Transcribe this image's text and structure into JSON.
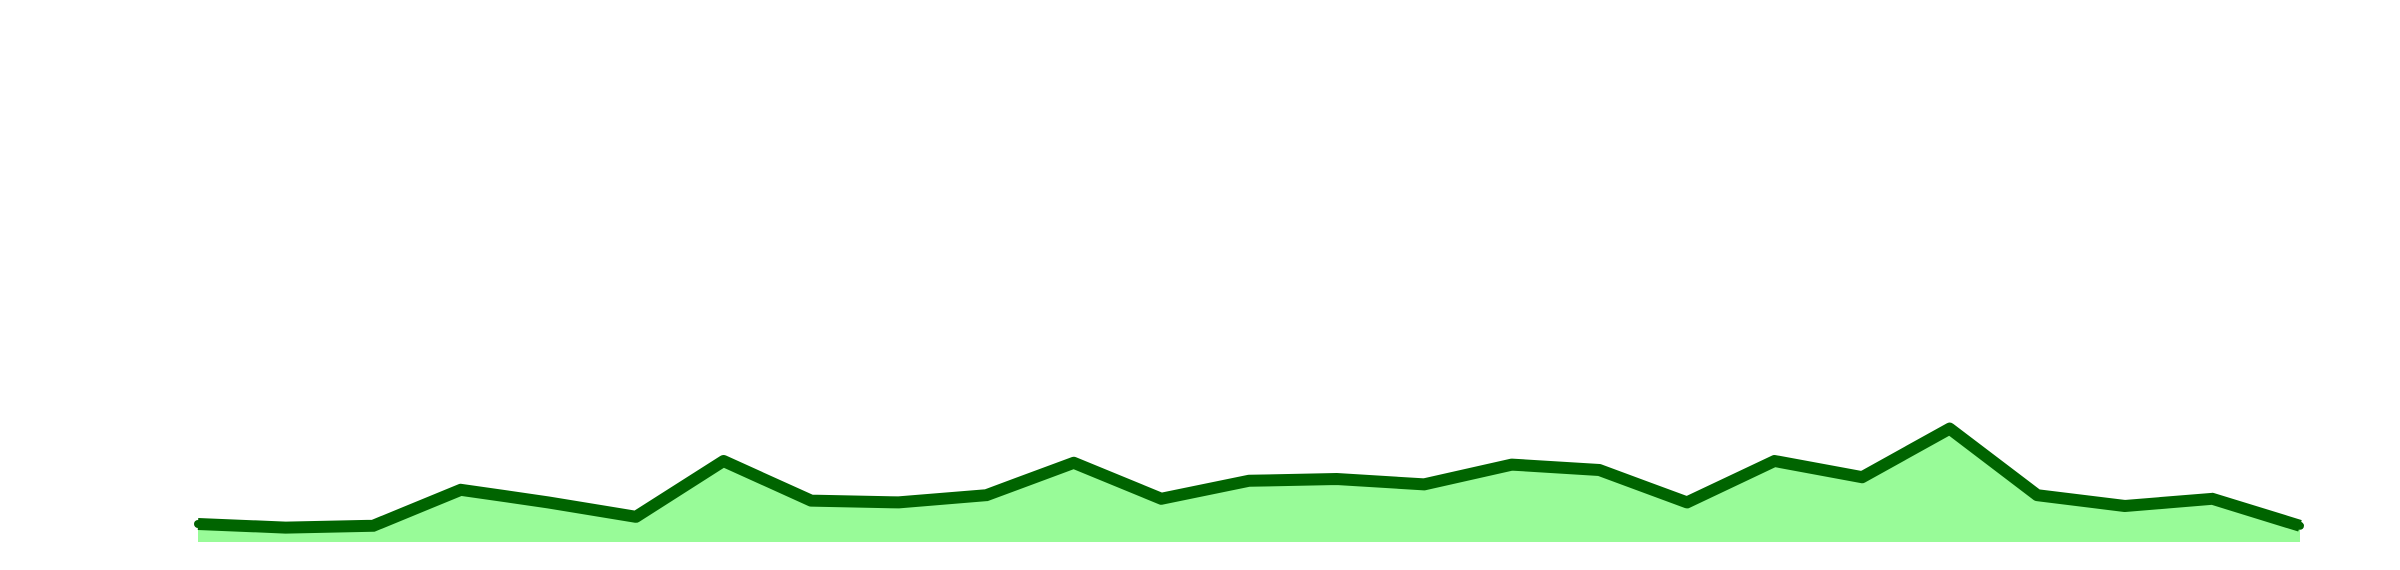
{
  "chart_data": {
    "type": "area",
    "x": [
      1,
      2,
      3,
      4,
      5,
      6,
      7,
      8,
      9,
      10,
      11,
      12,
      13,
      14,
      15,
      16,
      17,
      18,
      19,
      20,
      21,
      22,
      23,
      24,
      25
    ],
    "series": [
      {
        "values": [
          5,
          4,
          4.5,
          14.5,
          11,
          7,
          22.5,
          11.5,
          11,
          13,
          22,
          12,
          17,
          17.5,
          16,
          21.5,
          20,
          11,
          22.5,
          18,
          31.5,
          13,
          10,
          12,
          4.5
        ]
      }
    ],
    "ylim": [
      0,
      100
    ],
    "grid": false,
    "colors": {
      "line": "#006400",
      "fill": "#98fb98"
    }
  }
}
